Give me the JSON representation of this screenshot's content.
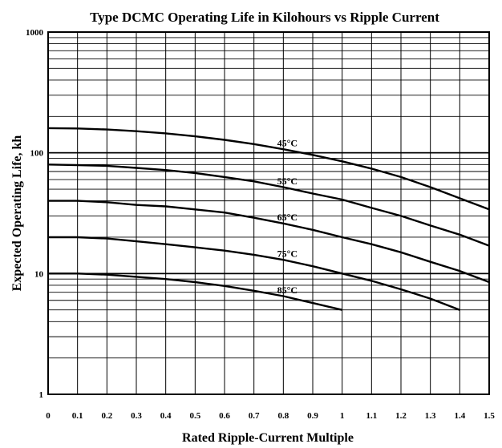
{
  "chart_data": {
    "type": "line",
    "title": "Type DCMC Operating Life in Kilohours vs Ripple Current",
    "xlabel": "Rated Ripple-Current Multiple",
    "ylabel": "Expected Operating Life, kh",
    "xlim": [
      0,
      1.5
    ],
    "ylim": [
      1,
      1000
    ],
    "y_scale": "log",
    "grid": true,
    "x_ticks": [
      "0",
      "0.1",
      "0.2",
      "0.3",
      "0.4",
      "0.5",
      "0.6",
      "0.7",
      "0.8",
      "0.9",
      "1",
      "1.1",
      "1.2",
      "1.3",
      "1.4",
      "1.5"
    ],
    "y_ticks": [
      "1",
      "10",
      "100",
      "1000"
    ],
    "series": [
      {
        "name": "45°C",
        "x": [
          0,
          0.1,
          0.2,
          0.3,
          0.4,
          0.5,
          0.6,
          0.7,
          0.8,
          0.9,
          1.0,
          1.1,
          1.2,
          1.3,
          1.4,
          1.5
        ],
        "y": [
          160,
          159,
          156,
          151,
          145,
          137,
          128,
          118,
          107,
          96,
          85,
          74,
          63,
          52,
          42,
          34
        ]
      },
      {
        "name": "55°C",
        "x": [
          0,
          0.1,
          0.2,
          0.3,
          0.4,
          0.5,
          0.6,
          0.7,
          0.8,
          0.9,
          1.0,
          1.1,
          1.2,
          1.3,
          1.4,
          1.5
        ],
        "y": [
          80,
          79,
          78,
          75,
          72,
          68,
          63,
          58,
          52,
          46,
          41,
          35,
          30,
          25,
          21,
          17
        ]
      },
      {
        "name": "65°C",
        "x": [
          0,
          0.1,
          0.2,
          0.3,
          0.4,
          0.5,
          0.6,
          0.7,
          0.8,
          0.9,
          1.0,
          1.1,
          1.2,
          1.3,
          1.4,
          1.5
        ],
        "y": [
          40,
          40,
          39,
          37,
          36,
          34,
          32,
          29,
          26,
          23,
          20,
          17.5,
          15,
          12.5,
          10.5,
          8.5
        ]
      },
      {
        "name": "75°C",
        "x": [
          0,
          0.1,
          0.2,
          0.3,
          0.4,
          0.5,
          0.6,
          0.7,
          0.8,
          0.9,
          1.0,
          1.1,
          1.2,
          1.3,
          1.4
        ],
        "y": [
          20,
          20,
          19.5,
          18.5,
          17.5,
          16.5,
          15.5,
          14.3,
          13,
          11.5,
          10,
          8.7,
          7.4,
          6.2,
          5
        ]
      },
      {
        "name": "85°C",
        "x": [
          0,
          0.1,
          0.2,
          0.3,
          0.4,
          0.5,
          0.6,
          0.7,
          0.8,
          0.9,
          1.0
        ],
        "y": [
          10,
          10,
          9.8,
          9.4,
          9,
          8.5,
          7.9,
          7.2,
          6.5,
          5.7,
          5
        ]
      }
    ]
  }
}
